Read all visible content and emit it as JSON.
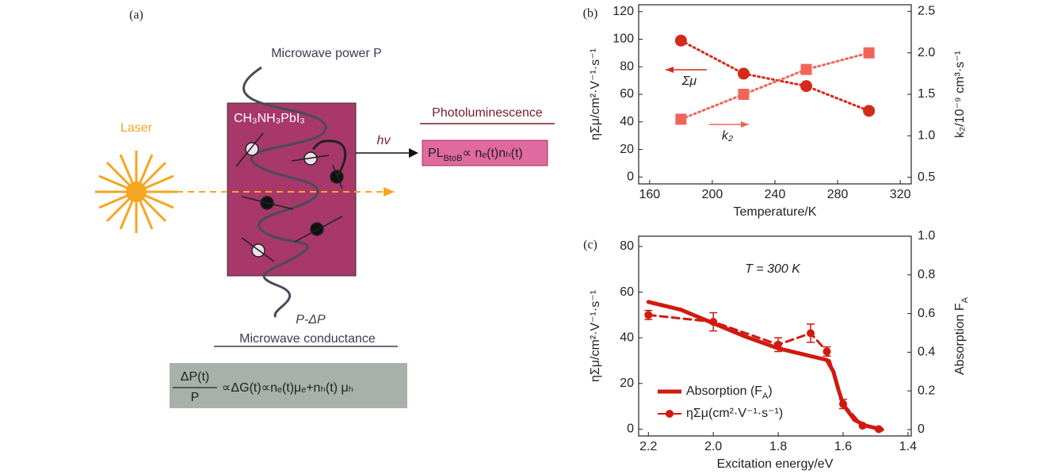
{
  "diagram": {
    "label": "(a)",
    "microwave_power": "Microwave power  P",
    "material": "CH₃NH₃PbI₃",
    "laser": "Laser",
    "photon": "hv",
    "photoluminescence": "Photoluminescence",
    "pl_formula": [
      "PL",
      "BtoB",
      "∝ nₑ(t)nₕ(t)"
    ],
    "power_out": "P-ΔP",
    "conductance": "Microwave conductance",
    "conductance_formula": {
      "numerator": "ΔP(t)",
      "denominator": "P",
      "rest": "∝ΔG(t)∝nₑ(t)μₑ+nₕ(t) μₕ"
    }
  },
  "chart_data": [
    {
      "type": "line",
      "panel": "(b)",
      "x": [
        180,
        220,
        260,
        300
      ],
      "xlim": [
        153,
        327
      ],
      "xticks": [
        160,
        200,
        240,
        280,
        320
      ],
      "ylim": [
        -5,
        125
      ],
      "yticks": [
        0,
        20,
        40,
        60,
        80,
        100,
        120
      ],
      "y2lim": [
        0.42,
        2.58
      ],
      "y2ticks": [
        0.5,
        {
          "value": 1,
          "label": "1.0"
        },
        1.5,
        {
          "value": 2,
          "label": "2.0"
        },
        2.5
      ],
      "xlabel": "Temperature/K",
      "ylabel": "ηΣμ/cm²·V⁻¹·s⁻¹",
      "y2label": "k₂/10⁻⁹ cm³·s⁻¹",
      "series": [
        {
          "color": "#d42a1a",
          "marker": "circle",
          "line_style": "dotted",
          "values": [
            99,
            75,
            66,
            48
          ]
        },
        {
          "color": "#f2645a",
          "marker": "square",
          "line_style": "dotted",
          "axis": "y2",
          "values": [
            1.2,
            1.5,
            1.8,
            2.0
          ]
        }
      ],
      "annotations": [
        "Σμ",
        "k₂"
      ]
    },
    {
      "type": "line",
      "panel": "(c)",
      "xlim": [
        2.23,
        1.39
      ],
      "xticks": [
        2.2,
        {
          "value": 2,
          "label": "2.0"
        },
        1.8,
        1.6,
        1.4
      ],
      "ylim": [
        -3,
        84.5
      ],
      "yticks": [
        0,
        20,
        40,
        60,
        80
      ],
      "y2lim": [
        -0.033,
        1.0
      ],
      "y2ticks": [
        0,
        0.2,
        0.4,
        0.6,
        0.8,
        {
          "value": 1,
          "label": "1.0"
        }
      ],
      "xlabel": "Excitation energy/eV",
      "ylabel": "ηΣμ/cm²·V⁻¹·s⁻¹",
      "y2label": [
        "Absorption F",
        "A"
      ],
      "legend": "lower left",
      "series": [
        {
          "name": [
            "Absorption (F",
            "A",
            ")"
          ],
          "color": "#d01a10",
          "line_style": "solid",
          "axis": "y2",
          "x": [
            2.2,
            2.1,
            2.0,
            1.9,
            1.8,
            1.7,
            1.65,
            1.63,
            1.615,
            1.6,
            1.565,
            1.53,
            1.48
          ],
          "values": [
            0.66,
            0.62,
            0.55,
            0.48,
            0.42,
            0.38,
            0.36,
            0.3,
            0.21,
            0.13,
            0.05,
            0.02,
            0
          ]
        },
        {
          "name": "ηΣμ(cm²·V⁻¹·s⁻¹)",
          "color": "#d01a10",
          "marker": "circle",
          "line_style": "dashed",
          "x": [
            2.2,
            2.0,
            1.8,
            1.7,
            1.65,
            1.6,
            1.54,
            1.49
          ],
          "values": [
            50,
            47,
            37,
            42,
            34,
            11,
            1.5,
            0
          ],
          "errors": [
            2,
            4,
            3,
            4,
            2,
            2,
            null,
            null
          ]
        }
      ],
      "annotations": [
        "T = 300 K"
      ]
    }
  ]
}
